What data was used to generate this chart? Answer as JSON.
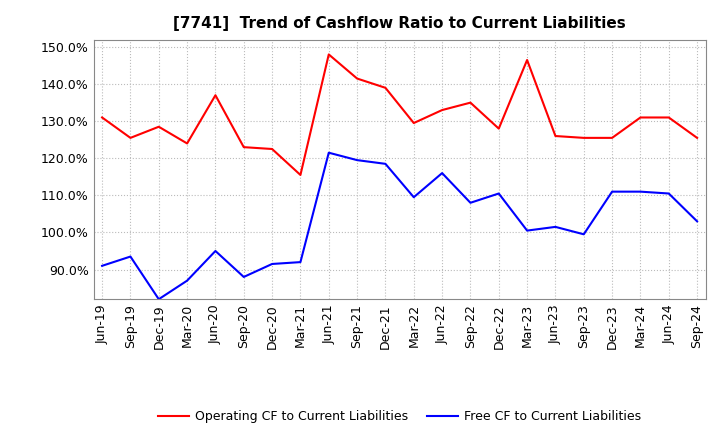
{
  "title": "[7741]  Trend of Cashflow Ratio to Current Liabilities",
  "x_labels": [
    "Jun-19",
    "Sep-19",
    "Dec-19",
    "Mar-20",
    "Jun-20",
    "Sep-20",
    "Dec-20",
    "Mar-21",
    "Jun-21",
    "Sep-21",
    "Dec-21",
    "Mar-22",
    "Jun-22",
    "Sep-22",
    "Dec-22",
    "Mar-23",
    "Jun-23",
    "Sep-23",
    "Dec-23",
    "Mar-24",
    "Jun-24",
    "Sep-24"
  ],
  "operating_cf": [
    131.0,
    125.5,
    128.5,
    124.0,
    137.0,
    123.0,
    122.5,
    115.5,
    148.0,
    141.5,
    139.0,
    129.5,
    133.0,
    135.0,
    128.0,
    146.5,
    126.0,
    125.5,
    125.5,
    131.0,
    131.0,
    125.5
  ],
  "free_cf": [
    91.0,
    93.5,
    82.0,
    87.0,
    95.0,
    88.0,
    91.5,
    92.0,
    121.5,
    119.5,
    118.5,
    109.5,
    116.0,
    108.0,
    110.5,
    100.5,
    101.5,
    99.5,
    111.0,
    111.0,
    110.5,
    103.0
  ],
  "operating_color": "#FF0000",
  "free_color": "#0000FF",
  "ylim": [
    82.0,
    152.0
  ],
  "yticks": [
    90.0,
    100.0,
    110.0,
    120.0,
    130.0,
    140.0,
    150.0
  ],
  "background_color": "#FFFFFF",
  "grid_color": "#BBBBBB",
  "title_fontsize": 11,
  "tick_fontsize": 9,
  "legend_labels": [
    "Operating CF to Current Liabilities",
    "Free CF to Current Liabilities"
  ],
  "legend_fontsize": 9
}
